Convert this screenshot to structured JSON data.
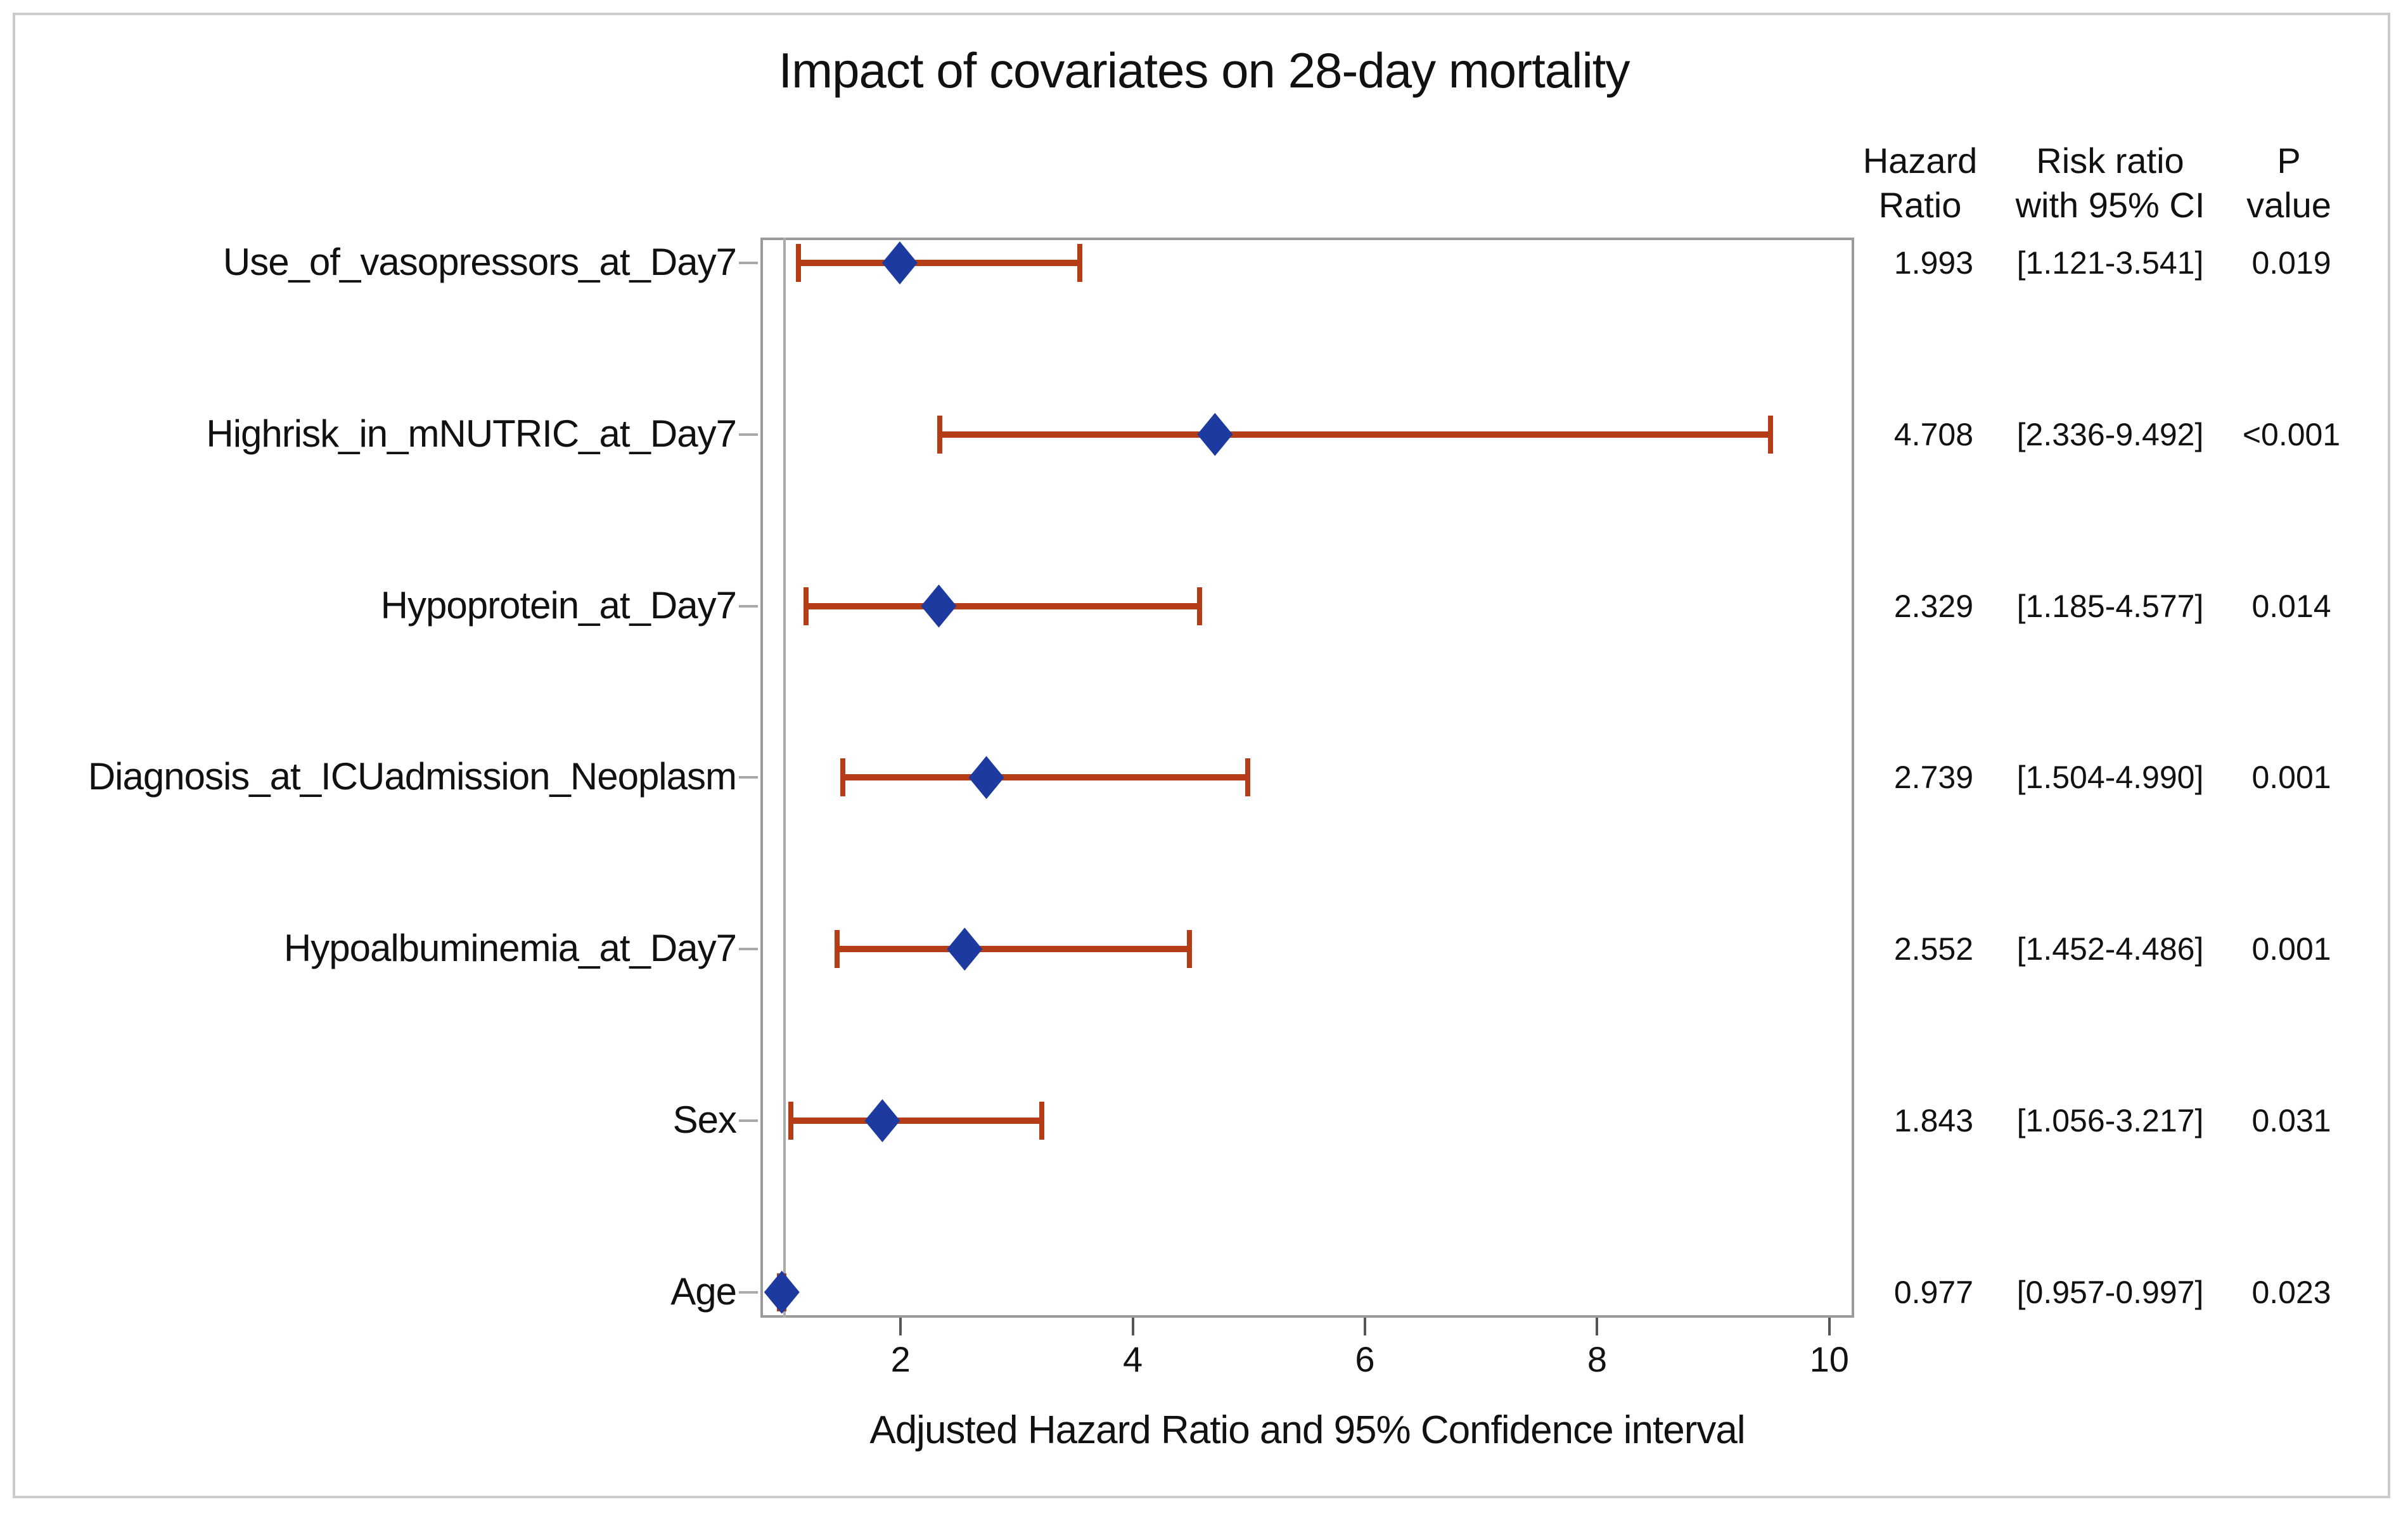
{
  "title": "Impact of covariates on 28-day mortality",
  "table_headers": {
    "hazard": [
      "Hazard",
      "Ratio"
    ],
    "ci": [
      "Risk ratio",
      "with 95% CI"
    ],
    "p": [
      "P",
      "value"
    ]
  },
  "chart_data": {
    "type": "scatter",
    "variant": "forest-plot",
    "title": "Impact of covariates on 28-day mortality",
    "xlabel": "Adjusted Hazard Ratio and 95% Confidence interval",
    "x_ticks": [
      2,
      4,
      6,
      8,
      10
    ],
    "x_range": [
      0.79,
      10.21
    ],
    "reference_line_x": 1,
    "grid": false,
    "rows": [
      {
        "label": "Use_of_vasopressors_at_Day7",
        "hr": 1.993,
        "ci_low": 1.121,
        "ci_high": 3.541,
        "hr_text": "1.993",
        "ci_text": "[1.121-3.541]",
        "p_text": "0.019"
      },
      {
        "label": "Highrisk_in_mNUTRIC_at_Day7",
        "hr": 4.708,
        "ci_low": 2.336,
        "ci_high": 9.492,
        "hr_text": "4.708",
        "ci_text": "[2.336-9.492]",
        "p_text": "<0.001"
      },
      {
        "label": "Hypoprotein_at_Day7",
        "hr": 2.329,
        "ci_low": 1.185,
        "ci_high": 4.577,
        "hr_text": "2.329",
        "ci_text": "[1.185-4.577]",
        "p_text": "0.014"
      },
      {
        "label": "Diagnosis_at_ICUadmission_Neoplasm",
        "hr": 2.739,
        "ci_low": 1.504,
        "ci_high": 4.99,
        "hr_text": "2.739",
        "ci_text": "[1.504-4.990]",
        "p_text": "0.001"
      },
      {
        "label": "Hypoalbuminemia_at_Day7",
        "hr": 2.552,
        "ci_low": 1.452,
        "ci_high": 4.486,
        "hr_text": "2.552",
        "ci_text": "[1.452-4.486]",
        "p_text": "0.001"
      },
      {
        "label": "Sex",
        "hr": 1.843,
        "ci_low": 1.056,
        "ci_high": 3.217,
        "hr_text": "1.843",
        "ci_text": "[1.056-3.217]",
        "p_text": "0.031"
      },
      {
        "label": "Age",
        "hr": 0.977,
        "ci_low": 0.957,
        "ci_high": 0.997,
        "hr_text": "0.977",
        "ci_text": "[0.957-0.997]",
        "p_text": "0.023"
      }
    ],
    "colors": {
      "marker": "#1c3aa0",
      "ci_line": "#b43d18",
      "plot_border": "#9a9a9a",
      "reference_line": "#ababab",
      "frame_border": "#cbcbcb",
      "text": "#111111"
    }
  }
}
